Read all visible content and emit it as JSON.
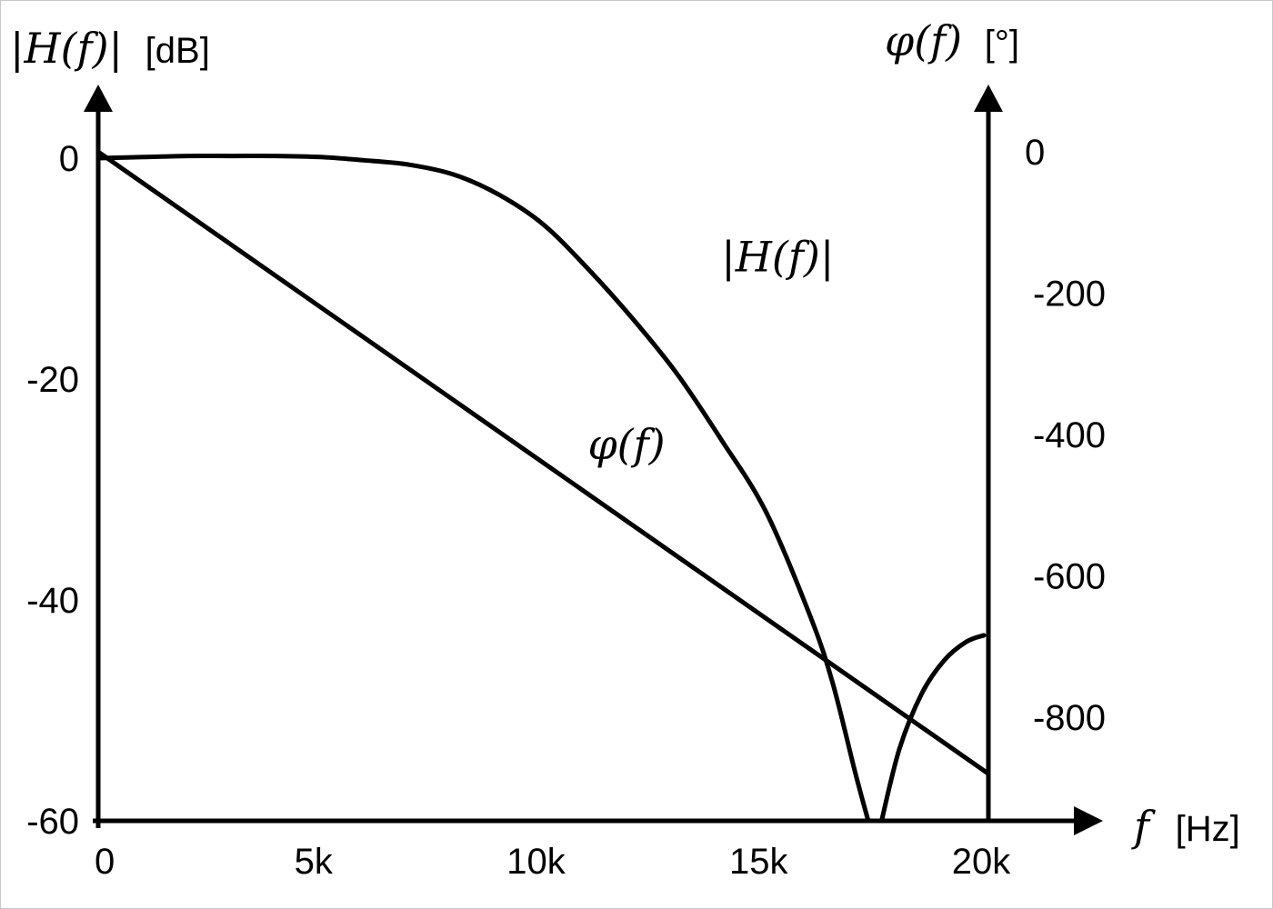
{
  "chart_data": {
    "type": "line",
    "title": "",
    "x_axis": {
      "label_symbol": "f",
      "label_unit": "[Hz]",
      "range": [
        0,
        20000
      ],
      "ticks": [
        0,
        5000,
        10000,
        15000,
        20000
      ],
      "tick_labels": [
        "0",
        "5k",
        "10k",
        "15k",
        "20k"
      ]
    },
    "y_axis_left": {
      "label_symbol": "|H(f)|",
      "label_unit": "[dB]",
      "range": [
        -60,
        0
      ],
      "ticks": [
        0,
        -20,
        -40,
        -60
      ],
      "tick_labels": [
        "0",
        "-20",
        "-40",
        "-60"
      ]
    },
    "y_axis_right": {
      "label_symbol": "φ(f)",
      "label_unit": "[°]",
      "range": [
        -900,
        0
      ],
      "ticks": [
        0,
        -200,
        -400,
        -600,
        -800
      ],
      "tick_labels": [
        "0",
        "-200",
        "-400",
        "-600",
        "-800"
      ]
    },
    "grid": false,
    "series": [
      {
        "name": "|H(f)|",
        "axis": "left",
        "x": [
          0,
          1000,
          2000,
          3000,
          4000,
          5000,
          6000,
          7000,
          8000,
          9000,
          10000,
          11000,
          12000,
          13000,
          14000,
          15000,
          16000,
          16500,
          17000,
          17300
        ],
        "y": [
          0,
          0.1,
          0.2,
          0.2,
          0.2,
          0.1,
          -0.2,
          -0.6,
          -1.5,
          -3.3,
          -6,
          -10,
          -14.5,
          -19.5,
          -25.5,
          -32,
          -41.5,
          -47.5,
          -55.5,
          -60
        ]
      },
      {
        "name": "|H(f)|",
        "axis": "left",
        "x": [
          17600,
          18000,
          18500,
          19000,
          19500,
          19900
        ],
        "y": [
          -60,
          -53.5,
          -48.5,
          -45.5,
          -43.8,
          -43.2
        ]
      },
      {
        "name": "φ(f)",
        "axis": "right",
        "x": [
          0,
          20000
        ],
        "y": [
          0,
          -880
        ]
      }
    ],
    "annotations": [
      {
        "text": "|H(f)|",
        "x": 14000,
        "y": -9
      },
      {
        "text": "φ(f)",
        "x": 11000,
        "y": -26
      }
    ]
  }
}
